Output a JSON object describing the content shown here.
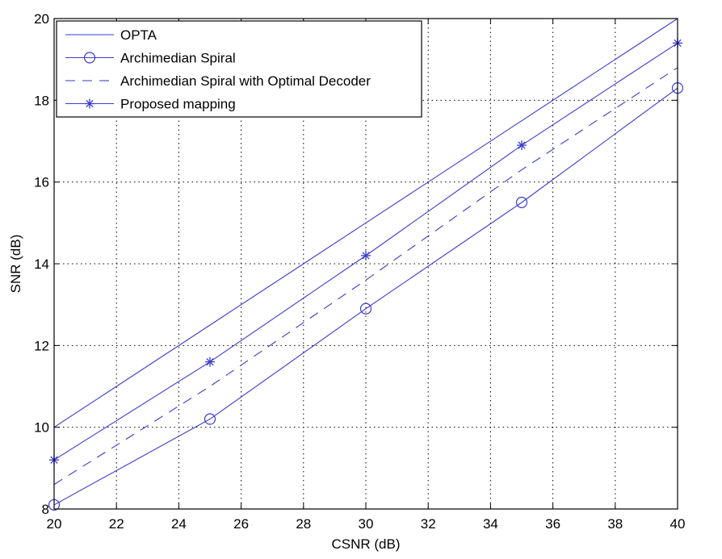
{
  "chart_data": {
    "type": "line",
    "title": "",
    "xlabel": "CSNR (dB)",
    "ylabel": "SNR (dB)",
    "xlim": [
      20,
      40
    ],
    "ylim": [
      8,
      20
    ],
    "xticks": [
      20,
      22,
      24,
      26,
      28,
      30,
      32,
      34,
      36,
      38,
      40
    ],
    "yticks": [
      8,
      10,
      12,
      14,
      16,
      18,
      20
    ],
    "grid": true,
    "legend_position": "upper left",
    "x": [
      20,
      25,
      30,
      35,
      40
    ],
    "series": [
      {
        "name": "OPTA",
        "style": "solid",
        "marker": "none",
        "values": [
          10.0,
          12.5,
          15.0,
          17.5,
          20.0
        ]
      },
      {
        "name": "Archimedian Spiral",
        "style": "solid",
        "marker": "circle",
        "values": [
          8.1,
          10.2,
          12.9,
          15.5,
          18.3
        ]
      },
      {
        "name": "Archimedian Spiral with Optimal Decoder",
        "style": "dashed",
        "marker": "none",
        "values": [
          8.6,
          11.0,
          13.6,
          16.3,
          18.8
        ]
      },
      {
        "name": "Proposed mapping",
        "style": "solid",
        "marker": "star",
        "values": [
          9.2,
          11.6,
          14.2,
          16.9,
          19.4
        ]
      }
    ],
    "line_color": "#3b3bcf"
  }
}
